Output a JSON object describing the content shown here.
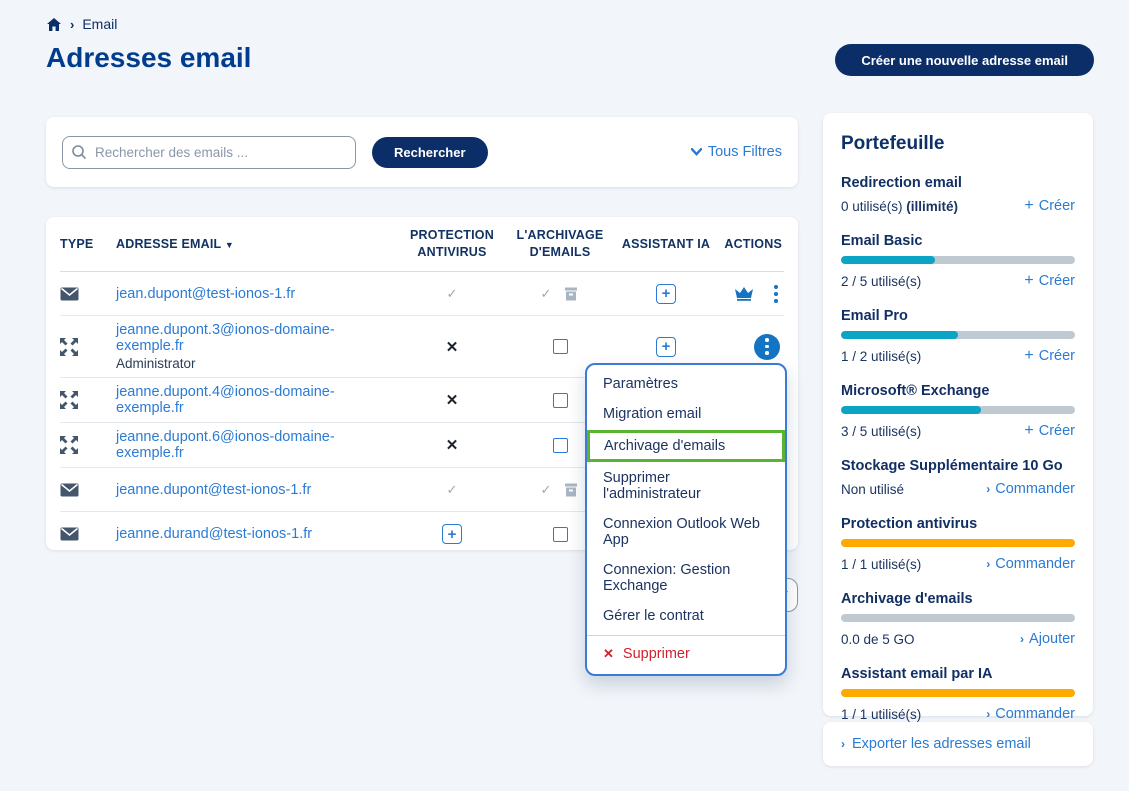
{
  "theme": {
    "navy": "#0c2e68",
    "title_color": "#003d8f",
    "link_blue": "#2b7bd4",
    "icon_blue": "#1474c4",
    "teal": "#0ca4c4",
    "orange": "#ffaa00",
    "gray_bar": "#bfc9d2",
    "green_highlight": "#5bb42f",
    "red": "#d0222e",
    "page_bg": "#f2f5f9"
  },
  "breadcrumb": {
    "home": "home-icon",
    "item": "Email"
  },
  "page": {
    "title": "Adresses email",
    "create_button": "Créer une nouvelle adresse email"
  },
  "search": {
    "placeholder": "Rechercher des emails ...",
    "button": "Rechercher",
    "filters": "Tous Filtres"
  },
  "table": {
    "headers": {
      "type": "TYPE",
      "email": "ADRESSE EMAIL",
      "antivirus": "PROTECTION\nANTIVIRUS",
      "archive": "L'ARCHIVAGE\nD'EMAILS",
      "assistant": "ASSISTANT IA",
      "actions": "ACTIONS"
    },
    "rows": [
      {
        "type": "email",
        "address": "jean.dupont@test-ionos-1.fr",
        "sub": "",
        "antivirus": "check",
        "archive": "check-trash",
        "assistant": "add",
        "actions": [
          "crown",
          "kebab"
        ]
      },
      {
        "type": "exchange",
        "address": "jeanne.dupont.3@ionos-domaine-exemple.fr",
        "sub": "Administrator",
        "antivirus": "cross",
        "archive": "checkbox",
        "assistant": "add",
        "actions": [
          "kebab-active"
        ]
      },
      {
        "type": "exchange",
        "address": "jeanne.dupont.4@ionos-domaine-exemple.fr",
        "sub": "",
        "antivirus": "cross",
        "archive": "checkbox",
        "assistant": "",
        "actions": []
      },
      {
        "type": "exchange",
        "address": "jeanne.dupont.6@ionos-domaine-exemple.fr",
        "sub": "",
        "antivirus": "cross",
        "archive": "checkbox",
        "assistant": "",
        "actions": []
      },
      {
        "type": "email",
        "address": "jeanne.dupont@test-ionos-1.fr",
        "sub": "",
        "antivirus": "check",
        "archive": "check-trash",
        "assistant": "",
        "actions": []
      },
      {
        "type": "email",
        "address": "jeanne.durand@test-ionos-1.fr",
        "sub": "",
        "antivirus": "add",
        "archive": "checkbox",
        "assistant": "",
        "actions": []
      }
    ]
  },
  "context_menu": {
    "items": [
      {
        "label": "Paramètres",
        "highlighted": false
      },
      {
        "label": "Migration email",
        "highlighted": false
      },
      {
        "label": "Archivage d'emails",
        "highlighted": true
      },
      {
        "label": "Supprimer l'administrateur",
        "highlighted": false
      },
      {
        "label": "Connexion Outlook Web App",
        "highlighted": false
      },
      {
        "label": "Connexion: Gestion Exchange",
        "highlighted": false
      },
      {
        "label": "Gérer le contrat",
        "highlighted": false
      }
    ],
    "delete_label": "Supprimer"
  },
  "wallet": {
    "title": "Portefeuille",
    "items": [
      {
        "name": "Redirection email",
        "usage": "0 utilisé(s) ",
        "usage_bold": "(illimité)",
        "link": "Créer",
        "link_icon": "plus",
        "bar": null
      },
      {
        "name": "Email Basic",
        "usage": "2 / 5 utilisé(s)",
        "usage_bold": "",
        "link": "Créer",
        "link_icon": "plus",
        "bar": {
          "pct": 40,
          "color": "teal"
        }
      },
      {
        "name": "Email Pro",
        "usage": "1 / 2 utilisé(s)",
        "usage_bold": "",
        "link": "Créer",
        "link_icon": "plus",
        "bar": {
          "pct": 50,
          "color": "teal"
        }
      },
      {
        "name": "Microsoft® Exchange",
        "usage": "3 / 5 utilisé(s)",
        "usage_bold": "",
        "link": "Créer",
        "link_icon": "plus",
        "bar": {
          "pct": 60,
          "color": "teal"
        }
      },
      {
        "name": "Stockage Supplémentaire 10 Go",
        "usage": "Non utilisé",
        "usage_bold": "",
        "link": "Commander",
        "link_icon": "chevron",
        "bar": null
      },
      {
        "name": "Protection antivirus",
        "usage": "1 / 1 utilisé(s)",
        "usage_bold": "",
        "link": "Commander",
        "link_icon": "chevron",
        "bar": {
          "pct": 100,
          "color": "orange"
        }
      },
      {
        "name": "Archivage d'emails",
        "usage": "0.0 de 5 GO",
        "usage_bold": "",
        "link": "Ajouter",
        "link_icon": "chevron",
        "bar": {
          "pct": 0,
          "color": "gray"
        }
      },
      {
        "name": "Assistant email par IA",
        "usage": "1 / 1 utilisé(s)",
        "usage_bold": "",
        "link": "Commander",
        "link_icon": "chevron",
        "bar": {
          "pct": 100,
          "color": "orange"
        }
      }
    ],
    "export_label": "Exporter les adresses email"
  }
}
